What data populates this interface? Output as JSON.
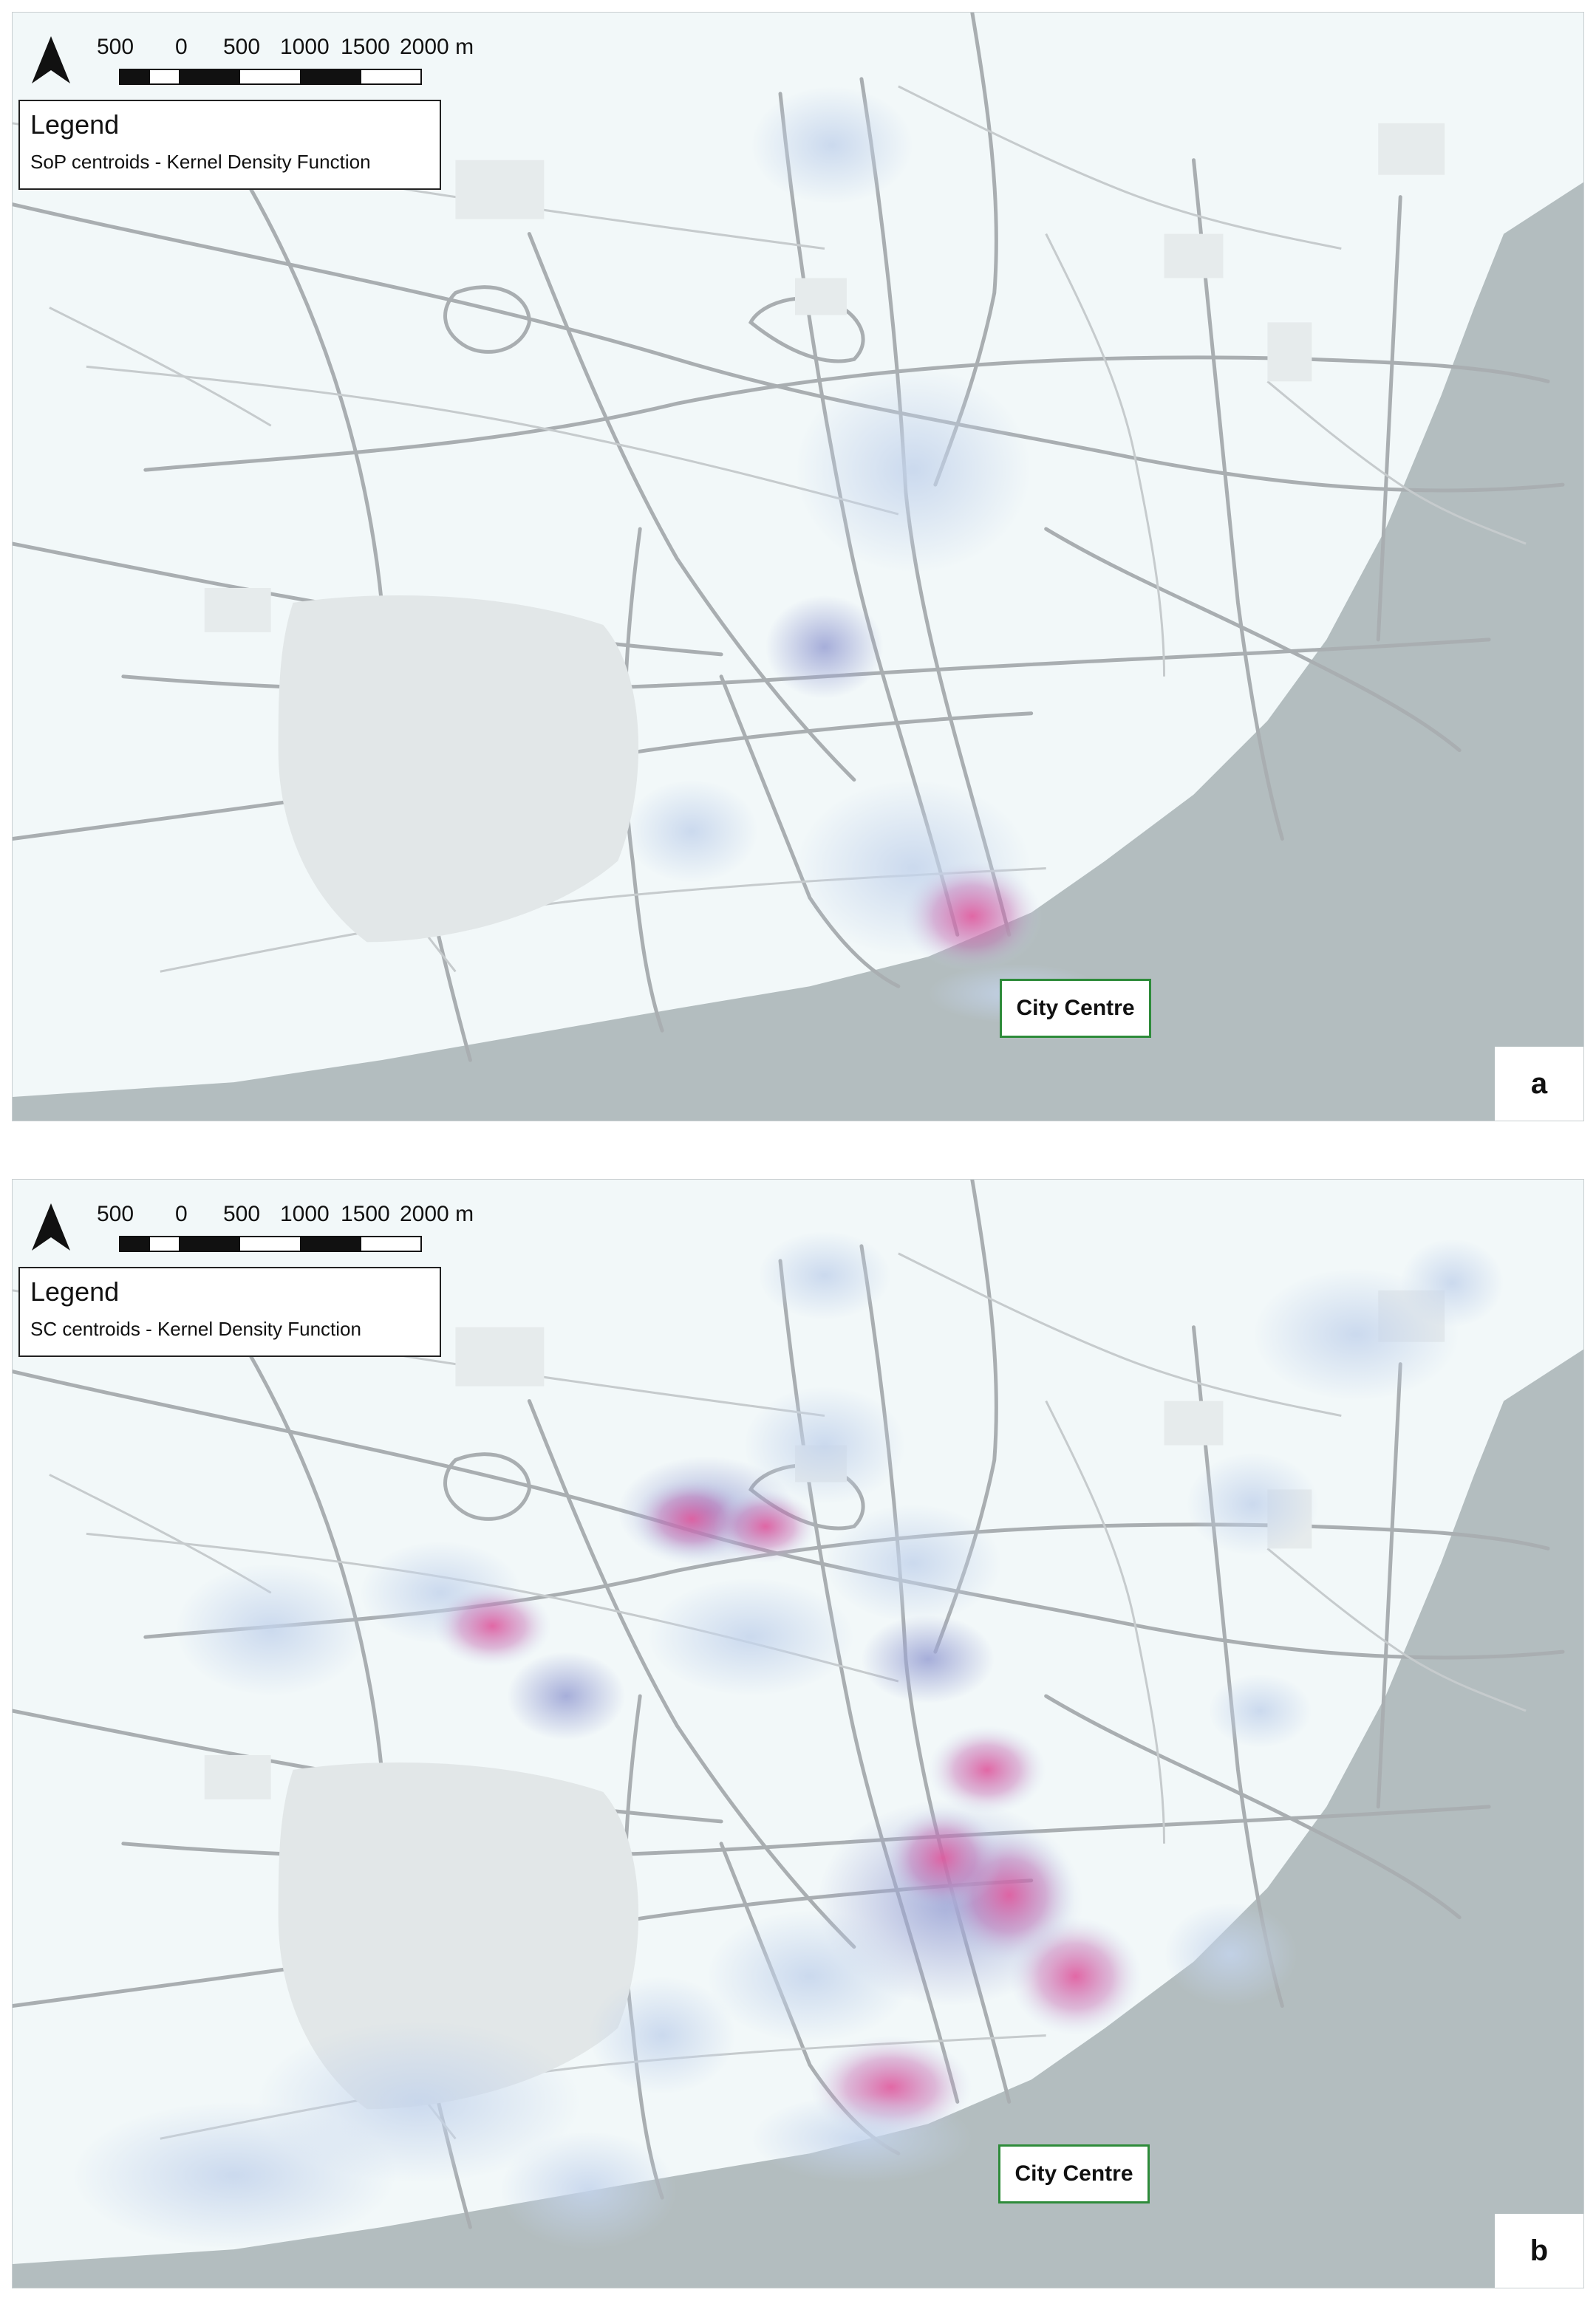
{
  "scale_bar": {
    "labels": [
      "500",
      "0",
      "500",
      "1000",
      "1500",
      "2000 m"
    ]
  },
  "panels": [
    {
      "id": "a",
      "legend_title": "Legend",
      "legend_item": "SoP centroids - Kernel Density Function",
      "city_label": "City Centre",
      "panel_letter": "a"
    },
    {
      "id": "b",
      "legend_title": "Legend",
      "legend_item": "SC centroids - Kernel Density Function",
      "city_label": "City Centre",
      "panel_letter": "b"
    }
  ],
  "colors": {
    "land": "#f2f8f9",
    "water": "#b3bdbf",
    "roads": "#a9aeb1",
    "density_low": "#c4d4ec",
    "density_mid": "#9ea6d6",
    "density_high": "#e0589c",
    "city_box_border": "#2e8b3a"
  },
  "icons": {
    "north_arrow": "north-arrow-icon"
  }
}
